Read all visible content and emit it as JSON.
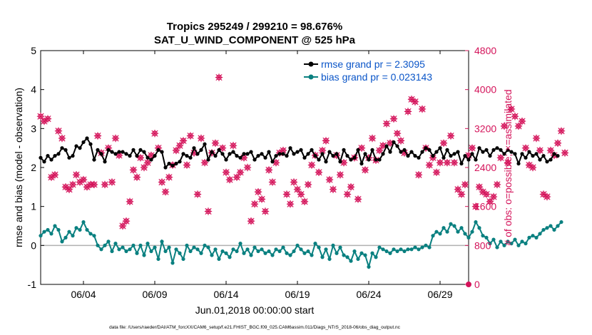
{
  "chart_data": {
    "type": "line",
    "title": "Tropics 295249 / 299210 = 98.676%",
    "subtitle": "SAT_U_WIND_COMPONENT @ 525 hPa",
    "xlabel": "Jun.01,2018 00:00:00 start",
    "ylabel": "rmse and bias (model - observation)",
    "ylabel_right": "# of obs: o=possible; ×=assimilated",
    "footnote": "data file: /Users/raeder/DAI/ATM_forcXX/CAM6_setup/f.e21.FHIST_BGC.f09_025.CAM6assim.011/Diags_NTrS_2018-06/obs_diag_output.nc",
    "xlim": [
      1.0,
      31.0
    ],
    "ylim": [
      -1,
      5
    ],
    "ylim_right": [
      0,
      4800
    ],
    "x_ticks": [
      4,
      9,
      14,
      19,
      24,
      29
    ],
    "x_tick_labels": [
      "06/04",
      "06/09",
      "06/14",
      "06/19",
      "06/24",
      "06/29"
    ],
    "y_ticks": [
      -1,
      0,
      1,
      2,
      3,
      4,
      5
    ],
    "y_tick_labels": [
      "-1",
      "0",
      "1",
      "2",
      "3",
      "4",
      "5"
    ],
    "y_ticks_right": [
      0,
      800,
      1600,
      2400,
      3200,
      4000,
      4800
    ],
    "y_tick_labels_right": [
      "0",
      "800",
      "1600",
      "2400",
      "3200",
      "4000",
      "4800"
    ],
    "zero_line": 0,
    "colors": {
      "rmse": "#000000",
      "bias": "#0a8080",
      "obs": "#d4135a",
      "zero": "#b0b0b0"
    },
    "legend": [
      {
        "name": "rmse grand pr = 2.3095",
        "series": "rmse"
      },
      {
        "name": "bias grand pr = 0.023143",
        "series": "bias"
      }
    ],
    "series": [
      {
        "name": "rmse",
        "axis": "left",
        "x_start": 1.0,
        "x_step": 0.25,
        "values": [
          2.25,
          2.15,
          2.3,
          2.2,
          2.3,
          2.35,
          2.5,
          2.45,
          2.25,
          2.3,
          2.55,
          2.5,
          2.65,
          2.75,
          2.6,
          2.2,
          2.45,
          2.35,
          2.15,
          2.45,
          2.4,
          2.35,
          2.4,
          2.4,
          2.35,
          2.3,
          2.45,
          2.3,
          2.45,
          2.4,
          2.25,
          2.2,
          2.3,
          2.45,
          2.4,
          2.0,
          2.1,
          2.05,
          2.1,
          2.15,
          2.35,
          2.3,
          2.25,
          2.5,
          2.35,
          2.45,
          2.6,
          2.2,
          2.4,
          2.3,
          2.45,
          2.35,
          2.2,
          2.35,
          2.4,
          2.3,
          2.25,
          2.35,
          2.35,
          2.4,
          2.2,
          2.3,
          2.35,
          2.25,
          2.4,
          2.15,
          2.3,
          2.35,
          2.35,
          2.3,
          2.5,
          2.35,
          2.4,
          2.45,
          2.25,
          2.35,
          2.45,
          2.3,
          2.2,
          2.35,
          2.15,
          2.4,
          2.3,
          2.35,
          2.15,
          2.45,
          2.3,
          2.2,
          2.25,
          2.45,
          2.1,
          2.35,
          2.2,
          2.45,
          2.2,
          2.2,
          2.35,
          2.55,
          2.4,
          2.65,
          2.55,
          2.4,
          2.45,
          2.3,
          2.4,
          2.3,
          2.25,
          2.4,
          2.5,
          2.45,
          2.3,
          2.4,
          2.5,
          2.25,
          2.45,
          2.3,
          2.35,
          2.4,
          2.1,
          2.3,
          2.2,
          2.35,
          2.2,
          2.5,
          2.4,
          2.45,
          2.3,
          2.45,
          2.5,
          2.45,
          2.35,
          2.45,
          2.4,
          2.35,
          2.1,
          2.35,
          2.25,
          2.4,
          2.3,
          2.35,
          2.2,
          2.3,
          2.15,
          2.2,
          2.35,
          2.3
        ]
      },
      {
        "name": "bias",
        "axis": "left",
        "x_start": 1.0,
        "x_step": 0.25,
        "values": [
          0.25,
          0.35,
          0.4,
          0.3,
          0.5,
          0.4,
          0.1,
          0.2,
          0.35,
          0.25,
          0.45,
          0.4,
          0.6,
          0.4,
          0.3,
          0.25,
          0.0,
          -0.1,
          0.0,
          0.1,
          -0.15,
          0.05,
          -0.1,
          -0.05,
          -0.15,
          -0.1,
          0.0,
          -0.2,
          0.0,
          -0.25,
          0.05,
          -0.15,
          -0.05,
          -0.35,
          0.1,
          -0.15,
          -0.05,
          -0.45,
          -0.1,
          -0.2,
          -0.35,
          0.0,
          -0.15,
          -0.05,
          -0.1,
          -0.2,
          0.0,
          -0.05,
          -0.25,
          -0.1,
          -0.35,
          -0.15,
          -0.2,
          -0.3,
          -0.1,
          -0.15,
          0.05,
          -0.2,
          -0.1,
          -0.25,
          -0.05,
          -0.15,
          -0.1,
          -0.2,
          -0.15,
          -0.25,
          -0.1,
          -0.15,
          -0.05,
          -0.2,
          -0.25,
          -0.15,
          0.0,
          -0.1,
          -0.2,
          -0.15,
          -0.25,
          0.05,
          -0.05,
          -0.3,
          -0.1,
          -0.35,
          0.0,
          -0.2,
          -0.05,
          -0.25,
          -0.3,
          -0.4,
          -0.15,
          -0.35,
          -0.2,
          -0.25,
          -0.55,
          -0.2,
          -0.3,
          -0.05,
          -0.1,
          -0.15,
          -0.2,
          -0.1,
          -0.15,
          -0.1,
          -0.15,
          -0.1,
          -0.1,
          -0.05,
          -0.1,
          -0.05,
          0.0,
          -0.05,
          0.25,
          0.35,
          0.3,
          0.45,
          0.35,
          0.55,
          0.5,
          0.35,
          0.45,
          0.3,
          0.2,
          0.35,
          0.6,
          0.45,
          0.25,
          0.2,
          0.05,
          0.15,
          -0.05,
          0.1,
          0.0,
          0.1,
          0.05,
          0.15,
          0.0,
          0.1,
          0.05,
          0.2,
          0.25,
          0.2,
          0.3,
          0.4,
          0.45,
          0.5,
          0.4,
          0.5,
          0.6
        ]
      },
      {
        "name": "obs_count",
        "axis": "right",
        "x_start": 1.0,
        "x_step": 0.25,
        "values": [
          3450,
          3350,
          3400,
          2200,
          2250,
          3150,
          3000,
          2000,
          1950,
          2050,
          2250,
          2100,
          2150,
          2000,
          2050,
          2050,
          3050,
          2700,
          2050,
          2800,
          2100,
          3000,
          2650,
          1200,
          1300,
          1700,
          2350,
          2200,
          2600,
          2400,
          2500,
          2650,
          3100,
          2800,
          2100,
          1900,
          2200,
          2450,
          2750,
          2850,
          2950,
          2450,
          3050,
          2700,
          1850,
          3000,
          2500,
          1500,
          2700,
          2900,
          4250,
          2800,
          2300,
          2150,
          2850,
          2200,
          2300,
          2600,
          2400,
          1300,
          1650,
          1900,
          1750,
          1500,
          2350,
          2100,
          2500,
          2700,
          2750,
          1850,
          1650,
          2100,
          1950,
          1850,
          1700,
          2050,
          2450,
          2650,
          2300,
          2750,
          2950,
          2150,
          1950,
          2650,
          2250,
          2500,
          1850,
          2000,
          2600,
          1750,
          2800,
          2350,
          2600,
          3000,
          2550,
          2750,
          2850,
          3300,
          2900,
          3400,
          3100,
          2950,
          2700,
          3550,
          3800,
          3750,
          2250,
          3600,
          2800,
          2450,
          2600,
          2300,
          2500,
          2900,
          2500,
          3050,
          2500,
          1950,
          1850,
          2050,
          2650,
          2800,
          1600,
          2000,
          1900,
          1850,
          1700,
          1800,
          2050,
          2600,
          3250,
          2500,
          3600,
          3450,
          3250,
          3350,
          2800,
          2450,
          2400,
          3000,
          2750,
          1850,
          1800,
          2750,
          2650,
          2900,
          3150,
          2700
        ]
      }
    ]
  }
}
